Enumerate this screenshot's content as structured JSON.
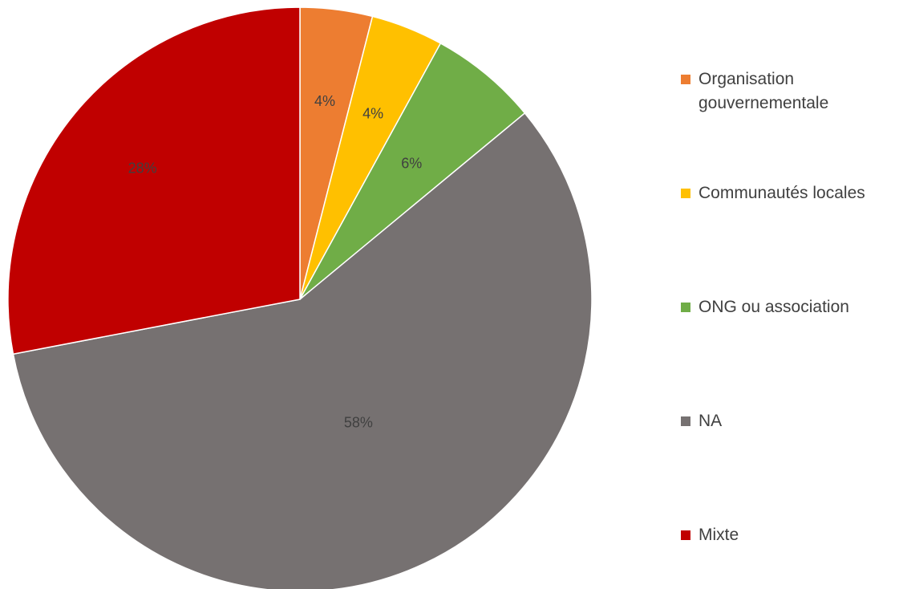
{
  "chart_data": {
    "type": "pie",
    "categories": [
      "Organisation gouvernementale",
      "Communautés locales",
      "ONG ou association",
      "NA",
      "Mixte"
    ],
    "values": [
      4,
      4,
      6,
      58,
      28
    ],
    "value_labels": [
      "4%",
      "4%",
      "6%",
      "58%",
      "28%"
    ],
    "colors": [
      "#ED7D31",
      "#FFC000",
      "#70AD47",
      "#767171",
      "#C00000"
    ],
    "start_angle": "12 o'clock, clockwise",
    "legend_position": "right"
  }
}
